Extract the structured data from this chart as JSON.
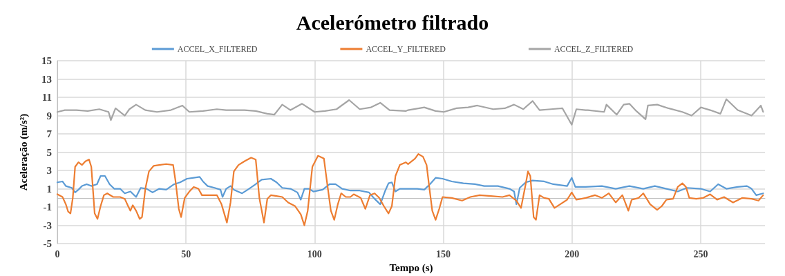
{
  "chart_data": {
    "type": "line",
    "title": "Acelerómetro filtrado",
    "xlabel": "Tempo (s)",
    "ylabel": "Aceleração (m/s²)",
    "xlim": [
      0,
      275
    ],
    "xticks": [
      0,
      50,
      100,
      150,
      200,
      250
    ],
    "ylim": [
      -5,
      15
    ],
    "yticks": [
      -5,
      -3,
      -1,
      1,
      3,
      5,
      7,
      9,
      11,
      13,
      15
    ],
    "grid": true,
    "legend": "top",
    "marker": "none",
    "line_style": "solid",
    "series": [
      {
        "name": "ACCEL_X_FILTERED",
        "color": "#5b9bd5",
        "x": [
          0,
          2,
          3.3,
          5.6,
          6.9,
          8.2,
          9.6,
          11.4,
          13.2,
          15.4,
          16.8,
          18.5,
          20.3,
          22.1,
          24.4,
          26.2,
          28.4,
          30.6,
          32.4,
          34.7,
          37,
          39.6,
          42.3,
          45.4,
          47.7,
          50.4,
          53,
          55.3,
          56.6,
          58.4,
          61.1,
          63.4,
          64.2,
          65.6,
          67.3,
          68.6,
          71.8,
          74.5,
          77.1,
          79.4,
          83,
          85.2,
          87.4,
          90.6,
          93.3,
          94.6,
          96,
          97.8,
          99.5,
          103.1,
          105.8,
          108.1,
          110.7,
          113.9,
          117.5,
          121.1,
          123.3,
          125.5,
          127.3,
          128.7,
          130,
          131.4,
          133.1,
          135.4,
          139.9,
          142.6,
          144.8,
          147,
          149.7,
          153.3,
          157.8,
          162.3,
          165.9,
          171.2,
          175.7,
          177.5,
          178.4,
          179.7,
          182,
          184.7,
          189.2,
          192.7,
          198.1,
          199.9,
          201.3,
          205.3,
          211.6,
          217,
          222.3,
          227.7,
          232.2,
          236.7,
          241.1,
          244.7,
          250.1,
          253.7,
          256.8,
          260,
          264.4,
          268,
          269.8,
          271.6,
          274.3
        ],
        "values": [
          1.7,
          1.8,
          1.3,
          1.1,
          0.6,
          0.9,
          1.3,
          1.5,
          1.3,
          1.5,
          2.4,
          2.4,
          1.5,
          1,
          1,
          0.5,
          0.7,
          0.1,
          1.1,
          1,
          0.6,
          1,
          0.9,
          1.5,
          1.7,
          2.1,
          2.2,
          2.3,
          1.8,
          1.3,
          1.1,
          0.9,
          0.1,
          1,
          1.3,
          0.9,
          0.5,
          1,
          1.5,
          2,
          2.1,
          1.7,
          1.1,
          1,
          0.6,
          -0.2,
          1,
          1,
          0.7,
          0.9,
          1.5,
          1.5,
          1,
          0.8,
          0.8,
          0.6,
          -0.1,
          -0.7,
          0.7,
          1.6,
          1.7,
          0.7,
          1,
          1,
          1,
          0.9,
          1.5,
          2.2,
          2.1,
          1.8,
          1.6,
          1.5,
          1.3,
          1.3,
          1,
          0.7,
          -0.7,
          1.1,
          1.7,
          1.9,
          1.8,
          1.5,
          1.3,
          2.2,
          1.2,
          1.2,
          1.3,
          1,
          1.3,
          1,
          1.3,
          1,
          0.7,
          1.1,
          1,
          0.7,
          1.5,
          1,
          1.2,
          1.3,
          1,
          0.3,
          0.5
        ]
      },
      {
        "name": "ACCEL_Y_FILTERED",
        "color": "#ed7d31",
        "x": [
          0,
          2,
          3.3,
          4.2,
          5.1,
          6,
          6.9,
          8.2,
          9.6,
          10.9,
          12.3,
          13.2,
          14.5,
          15.6,
          16.8,
          18.1,
          19.4,
          21.7,
          24.4,
          26.2,
          27.5,
          28.4,
          29.3,
          30.6,
          32,
          32.9,
          34.2,
          35.6,
          37.4,
          39.6,
          42.3,
          45,
          45.9,
          47.2,
          48.1,
          49.5,
          51.3,
          53,
          54.8,
          56.2,
          58.4,
          62,
          63.8,
          65.9,
          67.3,
          68.6,
          70.4,
          72.7,
          75.3,
          77.1,
          78.5,
          80.3,
          81.6,
          83,
          85.2,
          87.4,
          89.7,
          92.4,
          94.6,
          96,
          97.3,
          99.1,
          101.3,
          103.6,
          104.9,
          106.3,
          107.6,
          109,
          110.3,
          112.1,
          113.9,
          115.2,
          117.9,
          119.7,
          121.5,
          123.3,
          125.1,
          126.9,
          128.7,
          130,
          131.4,
          133.1,
          135.4,
          136.3,
          139,
          140.3,
          142.1,
          143.5,
          144.4,
          145.7,
          147,
          148.4,
          149.7,
          153.3,
          157.3,
          160.5,
          164.1,
          168.5,
          173,
          175.7,
          178.4,
          180.2,
          182,
          182.9,
          183.8,
          185.1,
          186,
          187.4,
          189.2,
          191,
          193.2,
          195.4,
          198.1,
          199.9,
          201.7,
          205.3,
          208.9,
          211.6,
          214.3,
          217,
          219.6,
          221.9,
          223.2,
          225.9,
          227.7,
          230.4,
          233.1,
          234.9,
          236.7,
          239.3,
          241.1,
          242.9,
          244.3,
          245.6,
          248.3,
          251,
          253.7,
          256.4,
          259.1,
          262.6,
          266.2,
          269.8,
          272.5,
          274.3
        ],
        "values": [
          0.4,
          0.1,
          -0.7,
          -1.5,
          -1.7,
          0,
          3.4,
          3.9,
          3.6,
          4,
          4.2,
          3.4,
          -1.7,
          -2.3,
          -0.9,
          0.3,
          0.5,
          0.1,
          0.1,
          -0.1,
          -0.9,
          -1.4,
          -0.8,
          -1.4,
          -2.3,
          -2.1,
          1,
          2.9,
          3.5,
          3.6,
          3.7,
          3.6,
          1.9,
          -1.2,
          -2.1,
          0,
          0.7,
          1.2,
          1,
          0.3,
          0.3,
          0.3,
          -0.7,
          -2.7,
          -0.5,
          2.9,
          3.6,
          4,
          4.4,
          4.2,
          0,
          -2.7,
          -0.1,
          0.3,
          0.2,
          0.1,
          -0.5,
          -0.9,
          -1.8,
          -3,
          -1.4,
          3.4,
          4.6,
          4.3,
          1.5,
          -1.4,
          -2.4,
          -0.7,
          0.5,
          0.1,
          0.1,
          0.4,
          0,
          -1.2,
          0.3,
          0.5,
          0,
          -0.9,
          -1.7,
          -0.9,
          2.4,
          3.6,
          3.9,
          3.7,
          4.3,
          4.8,
          4.5,
          3.6,
          1.5,
          -1.4,
          -2.4,
          -1.2,
          0.1,
          0,
          -0.3,
          0.1,
          0.3,
          0.2,
          0.1,
          0.3,
          -0.3,
          -1.1,
          1.5,
          2.9,
          2.4,
          -2.1,
          -2.4,
          0.3,
          0,
          -0.1,
          -1.1,
          -0.7,
          -0.2,
          0.6,
          -0.2,
          0,
          0.3,
          0,
          0.5,
          -0.5,
          0.3,
          -1.4,
          -0.2,
          0,
          0.5,
          -0.7,
          -1.3,
          -0.9,
          -0.2,
          -0.1,
          1.2,
          1.6,
          1.2,
          0,
          -0.1,
          0,
          0.4,
          -0.2,
          0.1,
          -0.5,
          0,
          -0.1,
          -0.3,
          0.3
        ]
      },
      {
        "name": "ACCEL_Z_FILTERED",
        "color": "#a5a5a5",
        "x": [
          0,
          2.9,
          7.4,
          11.8,
          16.3,
          19.9,
          20.8,
          22.6,
          26.2,
          28,
          30.6,
          34.2,
          38.7,
          44.1,
          48.6,
          51.3,
          56.6,
          62,
          65.6,
          68.2,
          72.7,
          77.1,
          81.6,
          84.3,
          87.4,
          90.6,
          95.1,
          100,
          104,
          108.5,
          113.4,
          117.5,
          121.9,
          125.5,
          129.1,
          135.4,
          136.3,
          142.6,
          147,
          150.2,
          155.1,
          159.6,
          163.2,
          169.4,
          173.9,
          177.5,
          181.1,
          184.7,
          187.4,
          191.8,
          196.3,
          199.9,
          201.7,
          205.3,
          206.2,
          212.5,
          213.4,
          217.4,
          220.1,
          222.3,
          225,
          228.6,
          229.5,
          233.1,
          237.5,
          242.9,
          246.5,
          250.1,
          253.7,
          257.7,
          260,
          264.4,
          269.8,
          273.4,
          274.3
        ],
        "values": [
          9.4,
          9.6,
          9.6,
          9.5,
          9.7,
          9.4,
          8.5,
          9.8,
          9,
          9.7,
          10.2,
          9.6,
          9.4,
          9.6,
          10.1,
          9.4,
          9.5,
          9.7,
          9.6,
          9.6,
          9.6,
          9.5,
          9.2,
          9.1,
          10.2,
          9.6,
          10.3,
          9.4,
          9.5,
          9.7,
          10.7,
          9.7,
          9.9,
          10.4,
          9.6,
          9.5,
          9.6,
          9.9,
          9.5,
          9.4,
          9.8,
          9.9,
          10.1,
          9.7,
          9.8,
          10.2,
          9.7,
          10.6,
          9.6,
          9.7,
          9.8,
          8,
          9.7,
          9.6,
          9.6,
          9.4,
          10.2,
          9.1,
          10.2,
          10.3,
          9.5,
          8.6,
          10.1,
          10.2,
          9.8,
          9.4,
          9,
          9.9,
          9.6,
          9.2,
          10.8,
          9.6,
          9,
          10.1,
          9.4
        ]
      }
    ]
  }
}
